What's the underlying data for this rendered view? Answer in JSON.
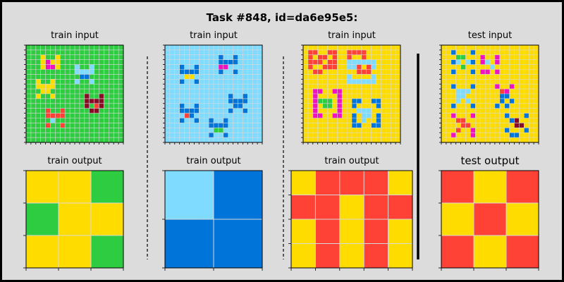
{
  "title": "Task #848, id=da6e95e5:",
  "colors": {
    "0": "#000000",
    "1": "#0074D9",
    "2": "#FF4136",
    "3": "#2ECC40",
    "4": "#FFDC00",
    "5": "#AAAAAA",
    "6": "#F012BE",
    "7": "#FF851B",
    "8": "#7FDBFF",
    "9": "#870C25"
  },
  "pairs": [
    {
      "input_label": "train input",
      "output_label": "train output",
      "input": {
        "rows": 20,
        "cols": 20,
        "background": 3,
        "cells": [
          [
            2,
            3,
            4
          ],
          [
            2,
            6,
            4
          ],
          [
            3,
            3,
            4
          ],
          [
            3,
            4,
            4
          ],
          [
            3,
            5,
            4
          ],
          [
            3,
            6,
            4
          ],
          [
            4,
            3,
            4
          ],
          [
            4,
            6,
            4
          ],
          [
            3,
            4,
            6
          ],
          [
            4,
            4,
            6
          ],
          [
            4,
            5,
            6
          ],
          [
            4,
            10,
            8
          ],
          [
            4,
            13,
            8
          ],
          [
            5,
            10,
            8
          ],
          [
            5,
            11,
            8
          ],
          [
            5,
            12,
            8
          ],
          [
            5,
            13,
            8
          ],
          [
            6,
            11,
            1
          ],
          [
            6,
            12,
            1
          ],
          [
            7,
            10,
            8
          ],
          [
            7,
            13,
            8
          ],
          [
            7,
            2,
            4
          ],
          [
            7,
            5,
            4
          ],
          [
            8,
            2,
            4
          ],
          [
            8,
            3,
            4
          ],
          [
            8,
            4,
            4
          ],
          [
            8,
            5,
            4
          ],
          [
            9,
            3,
            4
          ],
          [
            9,
            4,
            4
          ],
          [
            10,
            2,
            4
          ],
          [
            10,
            5,
            4
          ],
          [
            10,
            12,
            9
          ],
          [
            10,
            15,
            9
          ],
          [
            11,
            12,
            9
          ],
          [
            11,
            13,
            9
          ],
          [
            11,
            14,
            9
          ],
          [
            11,
            15,
            9
          ],
          [
            12,
            12,
            9
          ],
          [
            12,
            15,
            9
          ],
          [
            12,
            14,
            2
          ],
          [
            13,
            4,
            2
          ],
          [
            13,
            7,
            2
          ],
          [
            14,
            4,
            2
          ],
          [
            14,
            5,
            2
          ],
          [
            14,
            6,
            2
          ],
          [
            14,
            7,
            2
          ],
          [
            15,
            5,
            8
          ],
          [
            16,
            4,
            2
          ],
          [
            16,
            7,
            2
          ],
          [
            13,
            13,
            9
          ],
          [
            13,
            14,
            9
          ]
        ]
      },
      "output": {
        "rows": 3,
        "cols": 3,
        "grid": [
          [
            4,
            4,
            3
          ],
          [
            3,
            4,
            4
          ],
          [
            4,
            4,
            3
          ]
        ]
      }
    },
    {
      "input_label": "train input",
      "output_label": "train output",
      "input": {
        "rows": 20,
        "cols": 20,
        "background": 8,
        "cells": [
          [
            2,
            11,
            1
          ],
          [
            2,
            14,
            1
          ],
          [
            3,
            11,
            1
          ],
          [
            3,
            12,
            1
          ],
          [
            3,
            13,
            1
          ],
          [
            3,
            14,
            1
          ],
          [
            4,
            11,
            6
          ],
          [
            4,
            12,
            6
          ],
          [
            5,
            11,
            1
          ],
          [
            5,
            14,
            1
          ],
          [
            4,
            3,
            1
          ],
          [
            4,
            6,
            1
          ],
          [
            5,
            3,
            1
          ],
          [
            5,
            4,
            1
          ],
          [
            5,
            5,
            1
          ],
          [
            5,
            6,
            1
          ],
          [
            6,
            4,
            4
          ],
          [
            6,
            5,
            4
          ],
          [
            7,
            3,
            1
          ],
          [
            7,
            6,
            1
          ],
          [
            10,
            13,
            1
          ],
          [
            10,
            16,
            1
          ],
          [
            11,
            13,
            1
          ],
          [
            11,
            14,
            1
          ],
          [
            11,
            15,
            1
          ],
          [
            11,
            16,
            1
          ],
          [
            12,
            14,
            1
          ],
          [
            12,
            15,
            1
          ],
          [
            13,
            13,
            1
          ],
          [
            13,
            16,
            1
          ],
          [
            12,
            3,
            1
          ],
          [
            12,
            6,
            1
          ],
          [
            13,
            3,
            1
          ],
          [
            13,
            4,
            1
          ],
          [
            13,
            5,
            1
          ],
          [
            13,
            6,
            1
          ],
          [
            14,
            4,
            2
          ],
          [
            14,
            5,
            1
          ],
          [
            15,
            3,
            1
          ],
          [
            15,
            6,
            1
          ],
          [
            15,
            9,
            1
          ],
          [
            15,
            12,
            1
          ],
          [
            16,
            9,
            1
          ],
          [
            16,
            10,
            1
          ],
          [
            16,
            11,
            1
          ],
          [
            16,
            12,
            1
          ],
          [
            17,
            10,
            3
          ],
          [
            17,
            11,
            3
          ],
          [
            18,
            9,
            1
          ],
          [
            18,
            12,
            1
          ]
        ]
      },
      "output": {
        "rows": 2,
        "cols": 2,
        "grid": [
          [
            8,
            1
          ],
          [
            1,
            1
          ]
        ]
      }
    },
    {
      "input_label": "train input",
      "output_label": "train output",
      "input": {
        "rows": 20,
        "cols": 20,
        "background": 4,
        "cells": [
          [
            1,
            1,
            2
          ],
          [
            1,
            2,
            2
          ],
          [
            1,
            5,
            2
          ],
          [
            1,
            6,
            2
          ],
          [
            2,
            1,
            2
          ],
          [
            2,
            3,
            2
          ],
          [
            2,
            4,
            2
          ],
          [
            2,
            6,
            2
          ],
          [
            3,
            1,
            2
          ],
          [
            3,
            2,
            2
          ],
          [
            3,
            3,
            2
          ],
          [
            3,
            5,
            2
          ],
          [
            3,
            6,
            2
          ],
          [
            4,
            1,
            2
          ],
          [
            4,
            4,
            2
          ],
          [
            4,
            5,
            2
          ],
          [
            4,
            6,
            2
          ],
          [
            5,
            2,
            2
          ],
          [
            5,
            3,
            2
          ],
          [
            1,
            9,
            2
          ],
          [
            1,
            10,
            2
          ],
          [
            1,
            11,
            2
          ],
          [
            1,
            12,
            2
          ],
          [
            2,
            9,
            2
          ],
          [
            2,
            12,
            2
          ],
          [
            3,
            9,
            8
          ],
          [
            3,
            14,
            8
          ],
          [
            4,
            9,
            8
          ],
          [
            4,
            10,
            8
          ],
          [
            4,
            14,
            8
          ],
          [
            5,
            11,
            2
          ],
          [
            5,
            12,
            2
          ],
          [
            5,
            13,
            2
          ],
          [
            6,
            9,
            8
          ],
          [
            6,
            14,
            8
          ],
          [
            7,
            9,
            8
          ],
          [
            7,
            14,
            8
          ],
          [
            4,
            11,
            2
          ],
          [
            4,
            13,
            2
          ],
          [
            3,
            10,
            8
          ],
          [
            3,
            11,
            8
          ],
          [
            3,
            12,
            8
          ],
          [
            3,
            13,
            8
          ],
          [
            7,
            10,
            8
          ],
          [
            7,
            11,
            8
          ],
          [
            7,
            12,
            8
          ],
          [
            7,
            13,
            8
          ],
          [
            9,
            2,
            6
          ],
          [
            9,
            3,
            6
          ],
          [
            9,
            6,
            6
          ],
          [
            9,
            7,
            6
          ],
          [
            10,
            2,
            6
          ],
          [
            10,
            7,
            6
          ],
          [
            11,
            2,
            6
          ],
          [
            11,
            3,
            3
          ],
          [
            11,
            4,
            3
          ],
          [
            11,
            5,
            3
          ],
          [
            11,
            7,
            6
          ],
          [
            12,
            2,
            6
          ],
          [
            12,
            4,
            3
          ],
          [
            12,
            5,
            3
          ],
          [
            12,
            7,
            6
          ],
          [
            13,
            2,
            6
          ],
          [
            13,
            7,
            6
          ],
          [
            14,
            2,
            6
          ],
          [
            14,
            3,
            6
          ],
          [
            14,
            6,
            6
          ],
          [
            14,
            7,
            6
          ],
          [
            11,
            10,
            1
          ],
          [
            11,
            11,
            1
          ],
          [
            11,
            14,
            1
          ],
          [
            11,
            15,
            1
          ],
          [
            12,
            10,
            1
          ],
          [
            12,
            15,
            1
          ],
          [
            13,
            11,
            8
          ],
          [
            13,
            12,
            8
          ],
          [
            13,
            13,
            8
          ],
          [
            14,
            10,
            1
          ],
          [
            14,
            12,
            8
          ],
          [
            14,
            15,
            1
          ],
          [
            15,
            10,
            1
          ],
          [
            15,
            15,
            1
          ],
          [
            16,
            10,
            1
          ],
          [
            16,
            11,
            1
          ],
          [
            16,
            14,
            1
          ],
          [
            16,
            15,
            1
          ],
          [
            14,
            13,
            8
          ],
          [
            15,
            12,
            8
          ]
        ]
      },
      "output": {
        "rows": 4,
        "cols": 5,
        "grid": [
          [
            4,
            2,
            2,
            2,
            4
          ],
          [
            2,
            2,
            4,
            2,
            2
          ],
          [
            4,
            2,
            4,
            2,
            4
          ],
          [
            4,
            2,
            4,
            2,
            4
          ]
        ]
      }
    },
    {
      "input_label": "test input",
      "output_label": "test output",
      "input": {
        "rows": 20,
        "cols": 20,
        "background": 4,
        "cells": [
          [
            1,
            2,
            1
          ],
          [
            1,
            6,
            1
          ],
          [
            2,
            3,
            3
          ],
          [
            2,
            4,
            3
          ],
          [
            3,
            2,
            1
          ],
          [
            3,
            3,
            8
          ],
          [
            3,
            5,
            8
          ],
          [
            3,
            6,
            1
          ],
          [
            4,
            4,
            3
          ],
          [
            5,
            2,
            1
          ],
          [
            5,
            6,
            1
          ],
          [
            2,
            8,
            6
          ],
          [
            2,
            11,
            6
          ],
          [
            3,
            8,
            6
          ],
          [
            3,
            9,
            8
          ],
          [
            3,
            11,
            6
          ],
          [
            4,
            10,
            8
          ],
          [
            5,
            8,
            6
          ],
          [
            5,
            11,
            6
          ],
          [
            5,
            9,
            6
          ],
          [
            8,
            2,
            1
          ],
          [
            8,
            6,
            1
          ],
          [
            9,
            3,
            8
          ],
          [
            9,
            4,
            8
          ],
          [
            9,
            5,
            8
          ],
          [
            10,
            4,
            8
          ],
          [
            11,
            3,
            8
          ],
          [
            11,
            5,
            8
          ],
          [
            12,
            2,
            1
          ],
          [
            12,
            6,
            1
          ],
          [
            10,
            3,
            8
          ],
          [
            8,
            11,
            6
          ],
          [
            8,
            14,
            6
          ],
          [
            9,
            12,
            2
          ],
          [
            9,
            13,
            6
          ],
          [
            10,
            12,
            1
          ],
          [
            10,
            13,
            1
          ],
          [
            11,
            12,
            1
          ],
          [
            11,
            14,
            1
          ],
          [
            12,
            11,
            1
          ],
          [
            12,
            13,
            1
          ],
          [
            14,
            2,
            6
          ],
          [
            14,
            6,
            6
          ],
          [
            15,
            3,
            2
          ],
          [
            15,
            4,
            2
          ],
          [
            16,
            4,
            2
          ],
          [
            16,
            5,
            2
          ],
          [
            17,
            3,
            2
          ],
          [
            17,
            6,
            6
          ],
          [
            18,
            2,
            6
          ],
          [
            18,
            6,
            6
          ],
          [
            14,
            13,
            1
          ],
          [
            14,
            17,
            1
          ],
          [
            15,
            14,
            1
          ],
          [
            15,
            15,
            9
          ],
          [
            16,
            15,
            9
          ],
          [
            16,
            16,
            9
          ],
          [
            17,
            13,
            1
          ],
          [
            17,
            17,
            1
          ],
          [
            18,
            14,
            1
          ],
          [
            18,
            15,
            1
          ]
        ]
      },
      "output": {
        "rows": 3,
        "cols": 3,
        "grid": [
          [
            2,
            4,
            2
          ],
          [
            4,
            2,
            4
          ],
          [
            2,
            4,
            2
          ]
        ]
      }
    }
  ]
}
